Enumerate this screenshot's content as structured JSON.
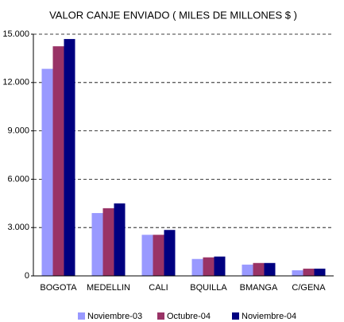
{
  "chart_data": {
    "type": "bar",
    "title": "VALOR CANJE ENVIADO ( MILES DE MILLONES $ )",
    "categories": [
      "BOGOTA",
      "MEDELLIN",
      "CALI",
      "BQUILLA",
      "BMANGA",
      "C/GENA"
    ],
    "series": [
      {
        "name": "Noviembre-03",
        "color": "#9999ff",
        "values": [
          12850,
          3900,
          2550,
          1050,
          700,
          350
        ]
      },
      {
        "name": "Octubre-04",
        "color": "#993366",
        "values": [
          14250,
          4200,
          2550,
          1150,
          800,
          450
        ]
      },
      {
        "name": "Noviembre-04",
        "color": "#000080",
        "values": [
          14700,
          4500,
          2850,
          1200,
          800,
          450
        ]
      }
    ],
    "ylim": [
      0,
      15000
    ],
    "yticks": [
      0,
      {
        "value": 3000,
        "label": "3.000"
      },
      {
        "value": 6000,
        "label": "6.000"
      },
      {
        "value": 9000,
        "label": "9.000"
      },
      {
        "value": 12000,
        "label": "12.000"
      },
      {
        "value": 15000,
        "label": "15.000"
      }
    ],
    "grid": true,
    "legend": "bottom"
  }
}
